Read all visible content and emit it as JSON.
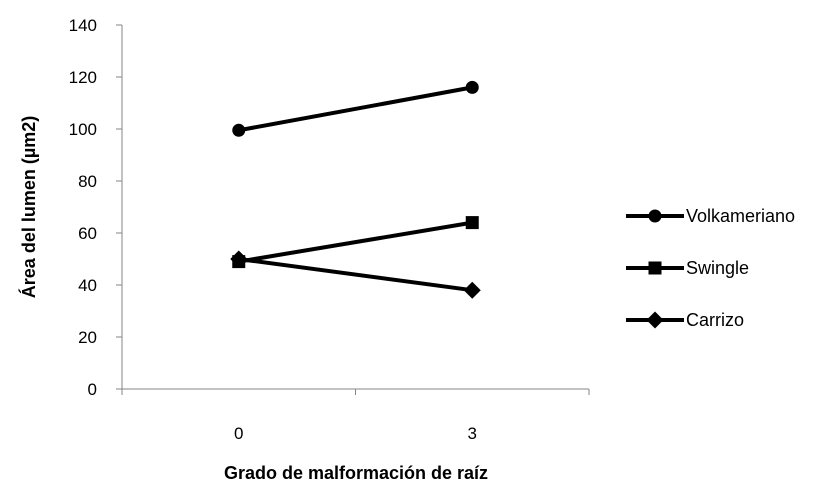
{
  "chart_data": {
    "type": "line",
    "title": "",
    "xlabel": "Grado de malformación de raíz",
    "ylabel": "Área del lumen (µm2)",
    "categories": [
      "0",
      "3"
    ],
    "ylim": [
      0,
      140
    ],
    "yticks": [
      "0",
      "20",
      "40",
      "60",
      "80",
      "100",
      "120",
      "140"
    ],
    "grid": false,
    "legend_position": "right",
    "series": [
      {
        "name": "Volkameriano",
        "marker": "circle",
        "color": "#000000",
        "values": [
          99.5,
          116
        ]
      },
      {
        "name": "Swingle",
        "marker": "square",
        "color": "#000000",
        "values": [
          49,
          64
        ]
      },
      {
        "name": "Carrizo",
        "marker": "diamond",
        "color": "#000000",
        "values": [
          50,
          38
        ]
      }
    ]
  }
}
